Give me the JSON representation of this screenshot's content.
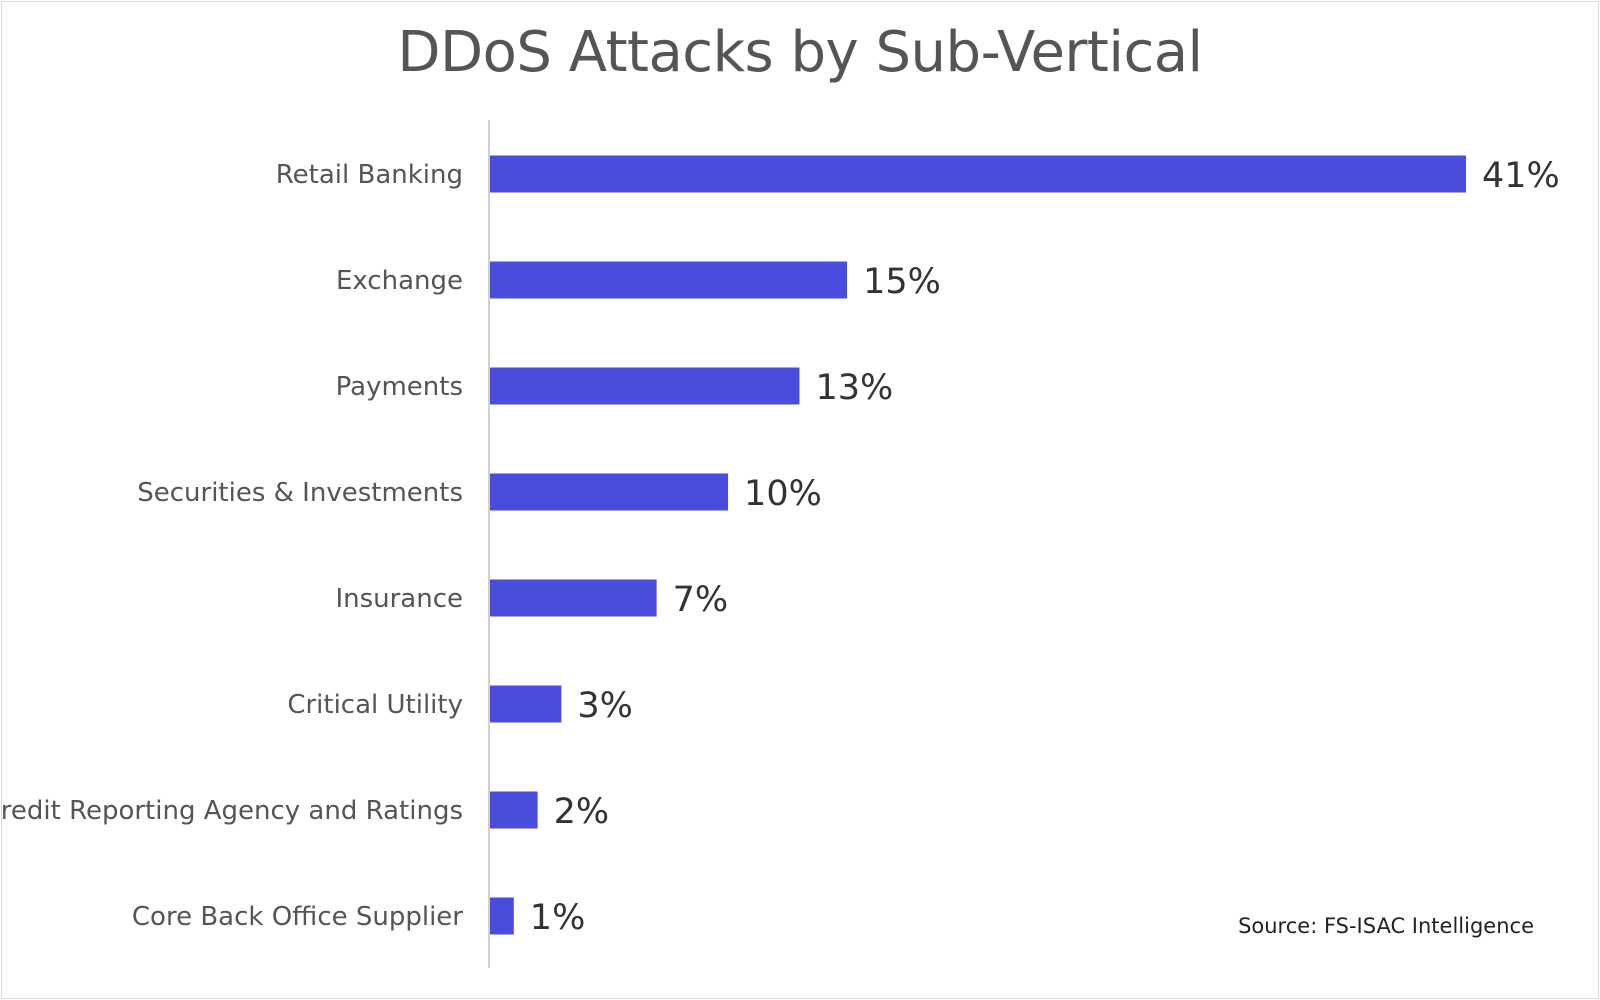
{
  "chart_data": {
    "type": "bar",
    "orientation": "horizontal",
    "title": "DDoS Attacks by Sub-Vertical",
    "categories": [
      "Retail Banking",
      "Exchange",
      "Payments",
      "Securities & Investments",
      "Insurance",
      "Critical Utility",
      "Credit Reporting Agency and Ratings",
      "Core Back Office Supplier"
    ],
    "values": [
      41,
      15,
      13,
      10,
      7,
      3,
      2,
      1
    ],
    "data_labels": [
      "41%",
      "15%",
      "13%",
      "10%",
      "7%",
      "3%",
      "2%",
      "1%"
    ],
    "unit": "%",
    "xlim": [
      0,
      41
    ],
    "grid": false,
    "legend": "none",
    "colors": {
      "bar": "#4a4ddc",
      "axis": "#d0d0d0",
      "label": "#555555",
      "value": "#333333"
    },
    "source": "Source: FS-ISAC Intelligence"
  }
}
